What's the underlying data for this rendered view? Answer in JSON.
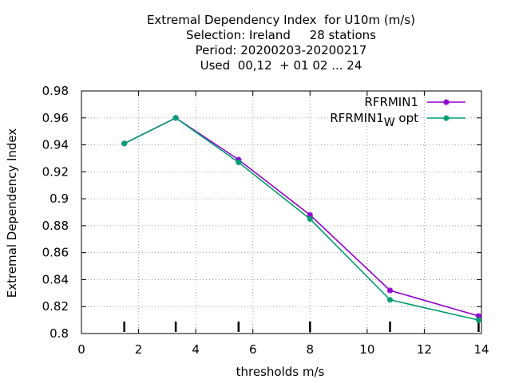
{
  "chart_data": {
    "type": "line",
    "title": "Extremal Dependency Index  for U10m (m/s)",
    "subtitle_lines": [
      "Selection: Ireland     28 stations",
      "Period: 20200203-20200217",
      "Used  00,12  + 01 02 ... 24"
    ],
    "xlabel": "thresholds m/s",
    "ylabel": "Extremal Dependency Index",
    "xlim": [
      0,
      14
    ],
    "ylim": [
      0.8,
      0.98
    ],
    "x_ticks": [
      "0",
      "2",
      "4",
      "6",
      "8",
      "10",
      "12",
      "14"
    ],
    "y_ticks": [
      "0.8",
      "0.82",
      "0.84",
      "0.86",
      "0.88",
      "0.9",
      "0.92",
      "0.94",
      "0.96",
      "0.98"
    ],
    "grid": true,
    "legend_position": "top-right",
    "x": [
      1.5,
      3.3,
      5.5,
      8.0,
      10.8,
      13.9
    ],
    "series": [
      {
        "name": "RFRMIN1",
        "color": "#9400d3",
        "values": [
          0.941,
          0.96,
          0.929,
          0.888,
          0.832,
          0.813
        ]
      },
      {
        "name": "RFRMIN1",
        "name_subscript": "W",
        "name_suffix": "opt",
        "color": "#009e73",
        "values": [
          0.941,
          0.96,
          0.927,
          0.885,
          0.825,
          0.81
        ]
      }
    ],
    "threshold_markers": [
      1.5,
      3.3,
      5.5,
      8.0,
      10.8,
      13.9
    ]
  }
}
